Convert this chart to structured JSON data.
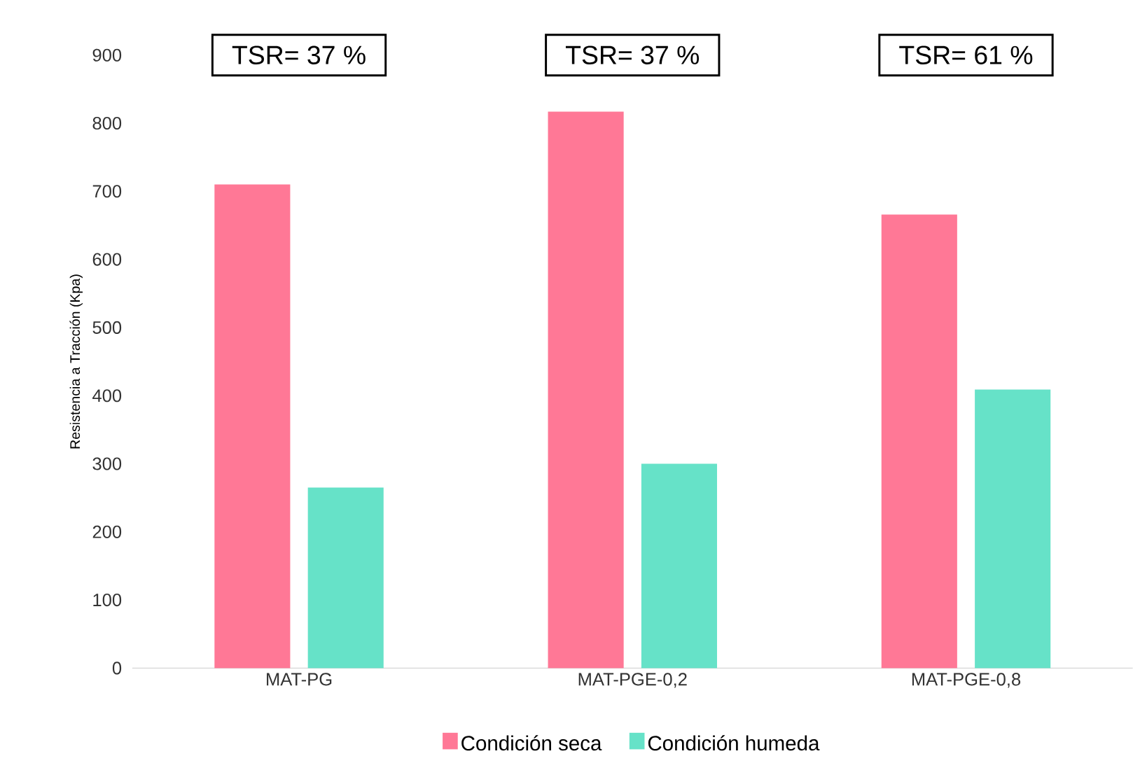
{
  "chart_data": {
    "type": "bar",
    "ylabel": "Resistencia a Tracción (Kpa)",
    "categories": [
      "MAT-PG",
      "MAT-PGE-0,2",
      "MAT-PGE-0,8"
    ],
    "series": [
      {
        "name": "Condición seca",
        "color": "#ff7896",
        "values": [
          710,
          817,
          666
        ]
      },
      {
        "name": "Condición humeda",
        "color": "#66e2c8",
        "values": [
          265,
          300,
          409
        ]
      }
    ],
    "ylim": [
      0,
      900
    ],
    "yticks": [
      0,
      100,
      200,
      300,
      400,
      500,
      600,
      700,
      800,
      900
    ],
    "legend": "bottom",
    "annotations": [
      "TSR= 37 %",
      "TSR= 37 %",
      "TSR= 61 %"
    ]
  }
}
